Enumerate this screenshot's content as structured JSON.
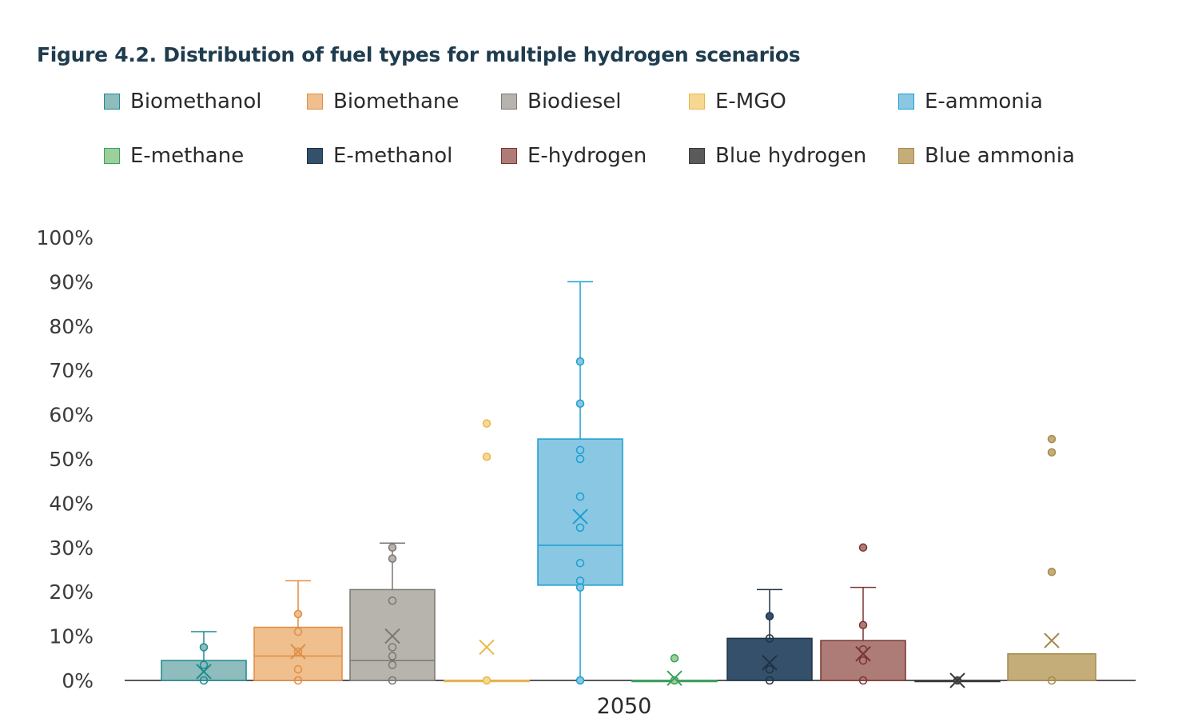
{
  "title": "Figure 4.2. Distribution of fuel types for multiple hydrogen scenarios",
  "legend": [
    {
      "label": "Biomethanol",
      "fill": "#8fbcbc",
      "stroke": "#1f8a8f"
    },
    {
      "label": "Biomethane",
      "fill": "#efbf8d",
      "stroke": "#e08d46"
    },
    {
      "label": "Biodiesel",
      "fill": "#b7b4ae",
      "stroke": "#7a7773"
    },
    {
      "label": "E-MGO",
      "fill": "#f7d890",
      "stroke": "#e9b74c"
    },
    {
      "label": "E-ammonia",
      "fill": "#8ac7e3",
      "stroke": "#1a9fd0"
    },
    {
      "label": "E-methane",
      "fill": "#9bcf9c",
      "stroke": "#3aa05a"
    },
    {
      "label": "E-methanol",
      "fill": "#34506b",
      "stroke": "#1e3246"
    },
    {
      "label": "E-hydrogen",
      "fill": "#ae7c76",
      "stroke": "#7a3431"
    },
    {
      "label": "Blue hydrogen",
      "fill": "#5a5a5a",
      "stroke": "#3a3a3a"
    },
    {
      "label": "Blue ammonia",
      "fill": "#c4ad78",
      "stroke": "#a68a4c"
    }
  ],
  "chart_data": {
    "type": "box",
    "title": "Figure 4.2. Distribution of fuel types for multiple hydrogen scenarios",
    "category": "2050",
    "ylim": [
      0,
      100
    ],
    "yticks": [
      "0%",
      "10%",
      "20%",
      "30%",
      "40%",
      "50%",
      "60%",
      "70%",
      "80%",
      "90%",
      "100%"
    ],
    "series": [
      {
        "name": "Biomethanol",
        "q1": 0,
        "median": 0,
        "q3": 4.5,
        "whisker_low": 0,
        "whisker_high": 11,
        "mean": 2,
        "points": [
          0,
          3.5,
          7.5
        ]
      },
      {
        "name": "Biomethane",
        "q1": 0,
        "median": 5.5,
        "q3": 12,
        "whisker_low": 0,
        "whisker_high": 22.5,
        "mean": 6.5,
        "points": [
          0,
          2.5,
          6.5,
          11,
          15
        ]
      },
      {
        "name": "Biodiesel",
        "q1": 0,
        "median": 4.5,
        "q3": 20.5,
        "whisker_low": 0,
        "whisker_high": 31,
        "mean": 10,
        "points": [
          0,
          3.5,
          5.5,
          7.5,
          18,
          27.5,
          30
        ]
      },
      {
        "name": "E-MGO",
        "q1": 0,
        "median": 0,
        "q3": 0,
        "whisker_low": 0,
        "whisker_high": 0,
        "mean": 7.5,
        "points": [
          0,
          50.5,
          58
        ]
      },
      {
        "name": "E-ammonia",
        "q1": 21.5,
        "median": 30.5,
        "q3": 54.5,
        "whisker_low": 0,
        "whisker_high": 90,
        "mean": 37,
        "points": [
          0,
          21,
          22.5,
          26.5,
          34.5,
          41.5,
          50,
          52,
          62.5,
          72
        ]
      },
      {
        "name": "E-methane",
        "q1": 0,
        "median": 0,
        "q3": 0,
        "whisker_low": 0,
        "whisker_high": 0,
        "mean": 0.5,
        "points": [
          0,
          5
        ]
      },
      {
        "name": "E-methanol",
        "q1": 0,
        "median": 0,
        "q3": 9.5,
        "whisker_low": 0,
        "whisker_high": 20.5,
        "mean": 4,
        "points": [
          0,
          2.5,
          9.5,
          14.5
        ]
      },
      {
        "name": "E-hydrogen",
        "q1": 0,
        "median": 0,
        "q3": 9,
        "whisker_low": 0,
        "whisker_high": 21,
        "mean": 6,
        "points": [
          0,
          4.5,
          7,
          12.5,
          30
        ]
      },
      {
        "name": "Blue hydrogen",
        "q1": 0,
        "median": 0,
        "q3": 0,
        "whisker_low": 0,
        "whisker_high": 0,
        "mean": 0,
        "points": [
          0
        ]
      },
      {
        "name": "Blue ammonia",
        "q1": 0,
        "median": 0,
        "q3": 6,
        "whisker_low": 0,
        "whisker_high": 6,
        "mean": 9,
        "points": [
          0,
          24.5,
          51.5,
          54.5
        ]
      }
    ]
  }
}
